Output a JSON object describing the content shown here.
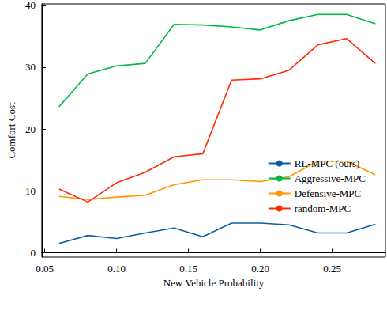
{
  "chart_data": {
    "type": "line",
    "x_label": "New Vehicle Probability",
    "y_label": "Comfort Cost",
    "x": [
      0.06,
      0.08,
      0.1,
      0.12,
      0.14,
      0.16,
      0.18,
      0.2,
      0.22,
      0.24,
      0.26,
      0.28
    ],
    "series": [
      {
        "name": "RL-MPC (ours)",
        "color": "#0C5DA5",
        "values": [
          1.5,
          2.8,
          2.3,
          3.2,
          4.0,
          2.6,
          4.8,
          4.8,
          4.5,
          3.2,
          3.2,
          4.6
        ]
      },
      {
        "name": "Aggressive-MPC",
        "color": "#00B945",
        "values": [
          23.6,
          28.9,
          30.2,
          30.6,
          36.9,
          36.8,
          36.5,
          36.0,
          37.5,
          38.5,
          38.5,
          37.0
        ]
      },
      {
        "name": "Defensive-MPC",
        "color": "#FF9500",
        "values": [
          9.1,
          8.6,
          9.0,
          9.3,
          11.0,
          11.8,
          11.8,
          11.5,
          12.3,
          14.8,
          14.8,
          12.6
        ]
      },
      {
        "name": "random-MPC",
        "color": "#FF2C00",
        "values": [
          10.3,
          8.2,
          11.3,
          13.0,
          15.5,
          16.0,
          27.9,
          28.1,
          29.5,
          33.6,
          34.6,
          30.6
        ]
      }
    ],
    "xlim": [
      0.048,
      0.287
    ],
    "xticks": [
      {
        "value": 0.05,
        "label": "0.05"
      },
      {
        "value": 0.1,
        "label": "0.10"
      },
      {
        "value": 0.15,
        "label": "0.15"
      },
      {
        "value": 0.2,
        "label": "0.20"
      },
      {
        "value": 0.25,
        "label": "0.25"
      }
    ],
    "ylim": [
      -0.7,
      40.2
    ],
    "yticks": [
      0,
      10,
      20,
      30,
      40
    ],
    "grid": false,
    "legend": "right"
  }
}
